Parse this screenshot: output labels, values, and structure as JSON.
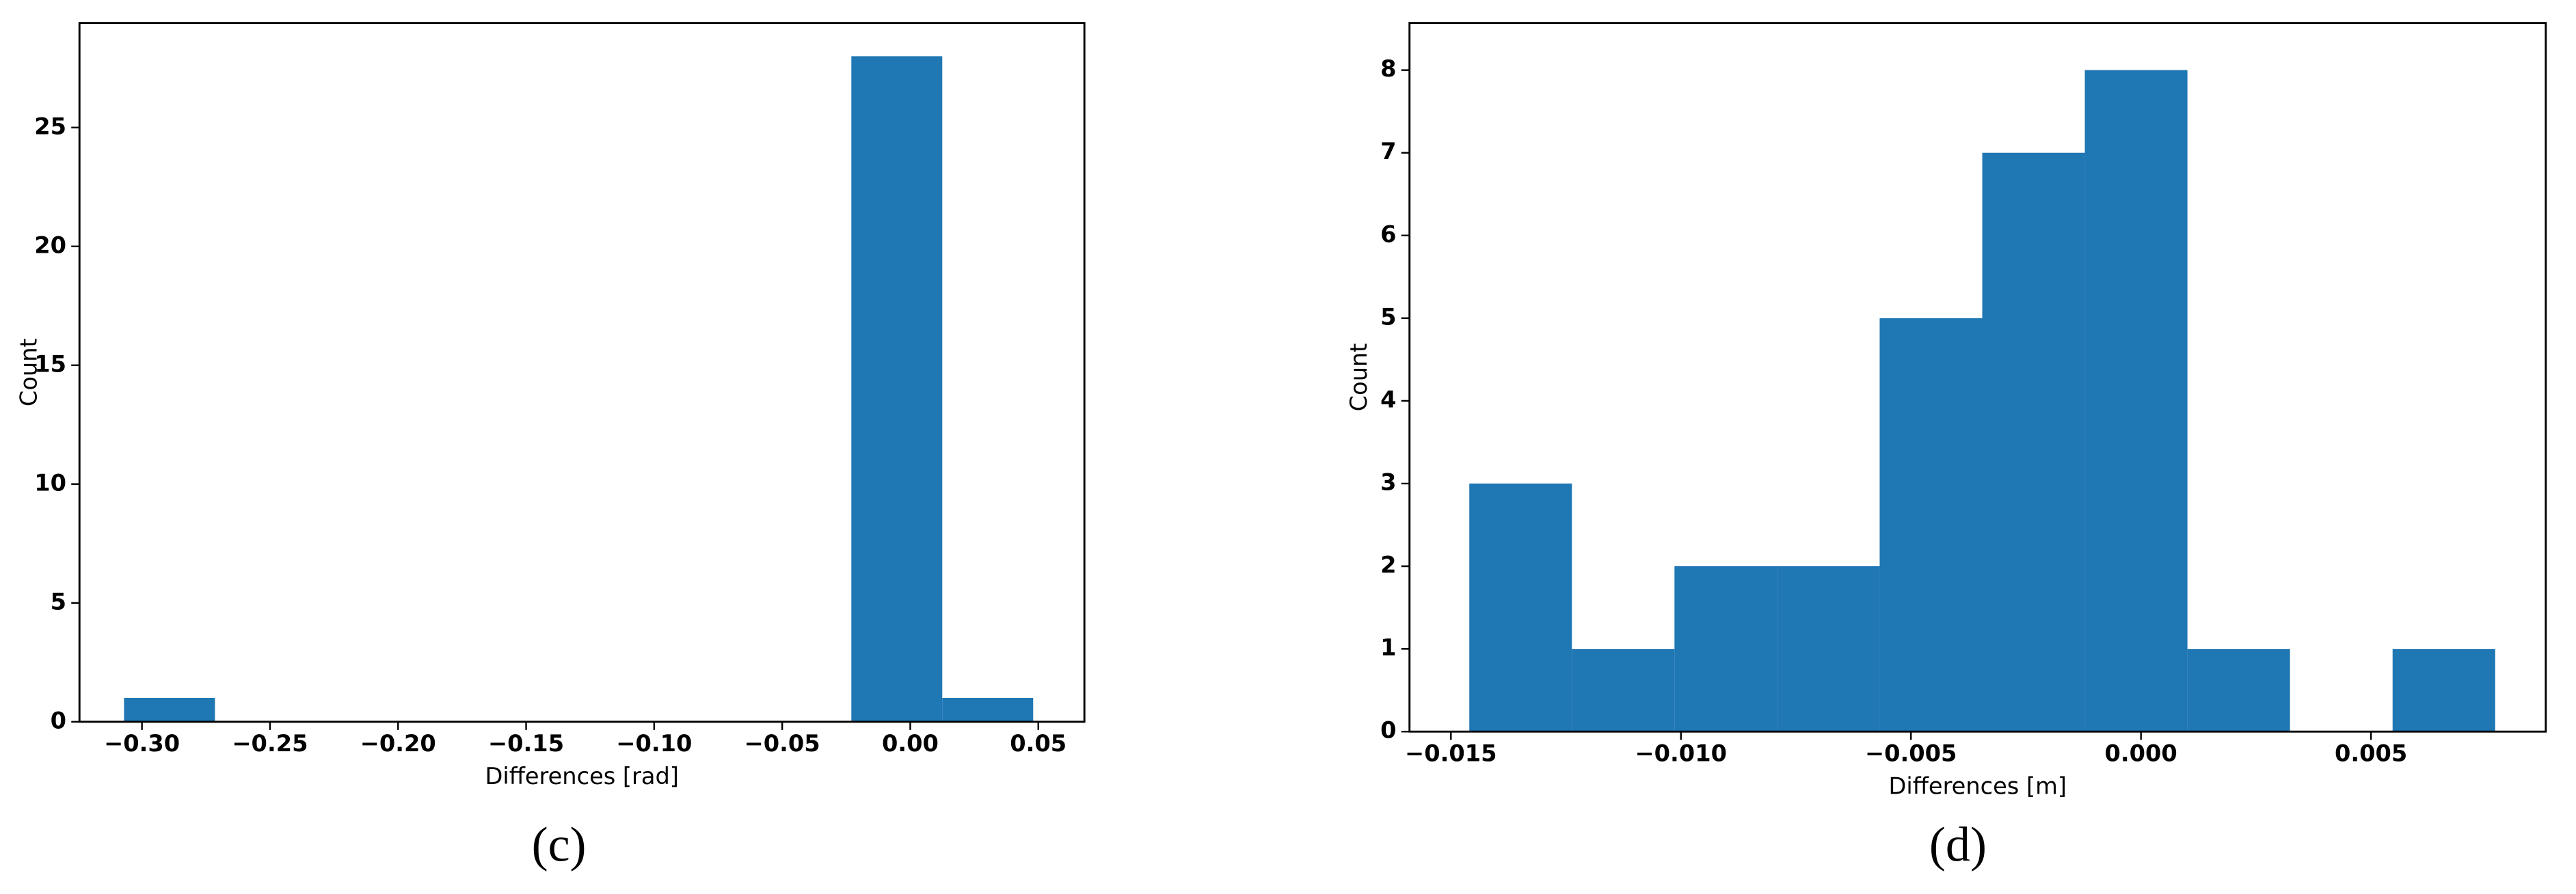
{
  "chart_data": [
    {
      "type": "histogram",
      "caption": "(c)",
      "xlabel": "Differences [rad]",
      "ylabel": "Count",
      "color": "#1f77b4",
      "bins": [
        -0.307,
        -0.2715,
        -0.236,
        -0.2005,
        -0.165,
        -0.1295,
        -0.094,
        -0.0585,
        -0.023,
        0.0125,
        0.048
      ],
      "values": [
        1,
        0,
        0,
        0,
        0,
        0,
        0,
        0,
        28,
        1
      ],
      "xlim": [
        -0.3244,
        0.068
      ],
      "ylim": [
        0,
        29.4
      ],
      "xticks": [
        {
          "value": -0.3,
          "label": "−0.30"
        },
        {
          "value": -0.25,
          "label": "−0.25"
        },
        {
          "value": -0.2,
          "label": "−0.20"
        },
        {
          "value": -0.15,
          "label": "−0.15"
        },
        {
          "value": -0.1,
          "label": "−0.10"
        },
        {
          "value": -0.05,
          "label": "−0.05"
        },
        {
          "value": 0,
          "label": "0.00"
        },
        0.05
      ],
      "yticks": [
        0,
        5,
        10,
        15,
        20,
        25
      ]
    },
    {
      "type": "histogram",
      "caption": "(d)",
      "xlabel": "Differences [m]",
      "ylabel": "Count",
      "color": "#1f77b4",
      "bins": [
        -0.0146,
        -0.01237,
        -0.01014,
        -0.00791,
        -0.00568,
        -0.00345,
        -0.00122,
        0.00101,
        0.00324,
        0.00547,
        0.0077
      ],
      "values": [
        3,
        1,
        2,
        2,
        5,
        7,
        8,
        1,
        0,
        1
      ],
      "xlim": [
        -0.0159,
        0.0088
      ],
      "ylim": [
        0,
        8.57
      ],
      "xticks": [
        {
          "value": -0.015,
          "label": "−0.015"
        },
        {
          "value": -0.01,
          "label": "−0.010"
        },
        {
          "value": -0.005,
          "label": "−0.005"
        },
        {
          "value": 0,
          "label": "0.000"
        },
        0.005
      ],
      "yticks": [
        0,
        1,
        2,
        3,
        4,
        5,
        6,
        7,
        8
      ]
    }
  ]
}
